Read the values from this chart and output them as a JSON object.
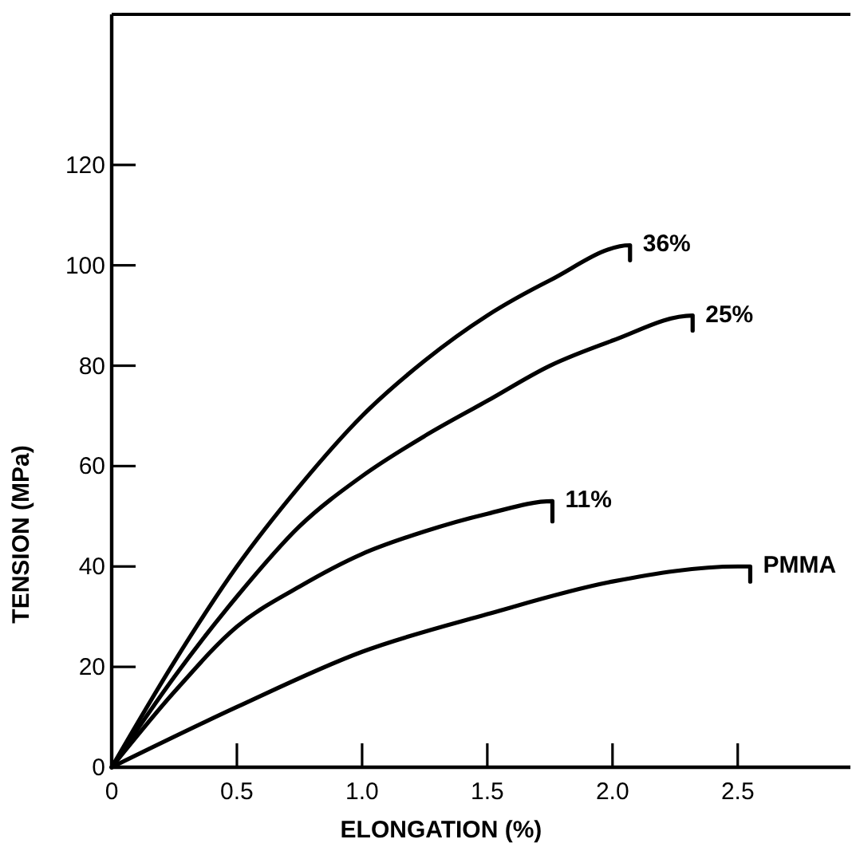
{
  "chart_data": {
    "type": "line",
    "xlabel": "ELONGATION (%)",
    "ylabel": "TENSION (MPa)",
    "xlim": [
      0,
      2.95
    ],
    "ylim": [
      0,
      150
    ],
    "xticks": [
      0,
      0.5,
      {
        "value": 1,
        "label": "1.0"
      },
      1.5,
      {
        "value": 2,
        "label": "2.0"
      },
      2.5
    ],
    "yticks": [
      0,
      20,
      40,
      60,
      80,
      100,
      120
    ],
    "grid": false,
    "marker": "none",
    "line_style": "solid",
    "series": [
      {
        "name": "36%",
        "color": "#000000",
        "x": [
          0,
          0.25,
          0.5,
          0.75,
          1.0,
          1.25,
          1.5,
          1.75,
          2.07,
          2.07
        ],
        "values": [
          0,
          21,
          40,
          56,
          70,
          81,
          90,
          97,
          104,
          101
        ]
      },
      {
        "name": "25%",
        "color": "#000000",
        "x": [
          0,
          0.25,
          0.5,
          0.75,
          1.0,
          1.25,
          1.5,
          1.75,
          2.0,
          2.32,
          2.32
        ],
        "values": [
          0,
          18,
          34,
          48,
          58,
          66,
          73,
          80,
          85,
          90,
          87
        ]
      },
      {
        "name": "11%",
        "color": "#000000",
        "x": [
          0,
          0.25,
          0.5,
          0.75,
          1.0,
          1.25,
          1.5,
          1.76,
          1.76
        ],
        "values": [
          0,
          15,
          28,
          36,
          42.5,
          47,
          50.5,
          53,
          49
        ]
      },
      {
        "name": "PMMA",
        "color": "#000000",
        "x": [
          0,
          0.5,
          1.0,
          1.5,
          2.0,
          2.5,
          2.55,
          2.55
        ],
        "values": [
          0,
          12,
          23,
          30.5,
          37,
          40,
          40,
          37
        ]
      }
    ]
  }
}
